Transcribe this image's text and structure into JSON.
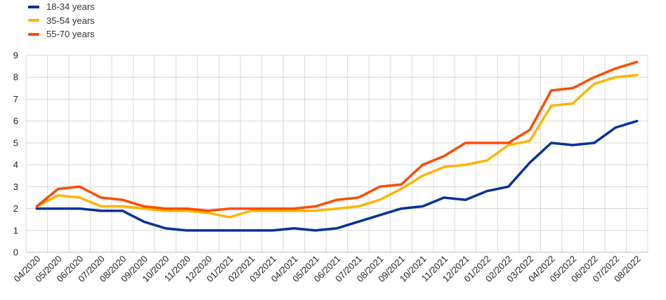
{
  "chart_data": {
    "type": "line",
    "title": "",
    "xlabel": "",
    "ylabel": "",
    "ylim": [
      0,
      9
    ],
    "yticks": [
      0,
      1,
      2,
      3,
      4,
      5,
      6,
      7,
      8,
      9
    ],
    "grid": true,
    "legend_position": "top-left",
    "categories": [
      "04/2020",
      "05/2020",
      "06/2020",
      "07/2020",
      "08/2020",
      "09/2020",
      "10/2020",
      "11/2020",
      "12/2020",
      "01/2021",
      "02/2021",
      "03/2021",
      "04/2021",
      "05/2021",
      "06/2021",
      "07/2021",
      "08/2021",
      "09/2021",
      "10/2021",
      "11/2021",
      "12/2021",
      "01/2022",
      "02/2022",
      "03/2022",
      "04/2022",
      "05/2022",
      "06/2022",
      "07/2022",
      "08/2022"
    ],
    "series": [
      {
        "name": "18-34 years",
        "color": "#003299",
        "values": [
          2.0,
          2.0,
          2.0,
          1.9,
          1.9,
          1.4,
          1.1,
          1.0,
          1.0,
          1.0,
          1.0,
          1.0,
          1.1,
          1.0,
          1.1,
          1.4,
          1.7,
          2.0,
          2.1,
          2.5,
          2.4,
          2.8,
          3.0,
          4.1,
          5.0,
          4.9,
          5.0,
          5.7,
          6.0
        ]
      },
      {
        "name": "35-54 years",
        "color": "#FFB400",
        "values": [
          2.1,
          2.6,
          2.5,
          2.1,
          2.1,
          2.0,
          1.9,
          1.9,
          1.8,
          1.6,
          1.9,
          1.9,
          1.9,
          1.9,
          2.0,
          2.1,
          2.4,
          2.9,
          3.5,
          3.9,
          4.0,
          4.2,
          4.9,
          5.1,
          6.7,
          6.8,
          7.7,
          8.0,
          8.1
        ]
      },
      {
        "name": "55-70 years",
        "color": "#FF4B00",
        "values": [
          2.1,
          2.9,
          3.0,
          2.5,
          2.4,
          2.1,
          2.0,
          2.0,
          1.9,
          2.0,
          2.0,
          2.0,
          2.0,
          2.1,
          2.4,
          2.5,
          3.0,
          3.1,
          4.0,
          4.4,
          5.0,
          5.0,
          5.0,
          5.6,
          7.4,
          7.5,
          8.0,
          8.4,
          8.7
        ]
      }
    ]
  }
}
